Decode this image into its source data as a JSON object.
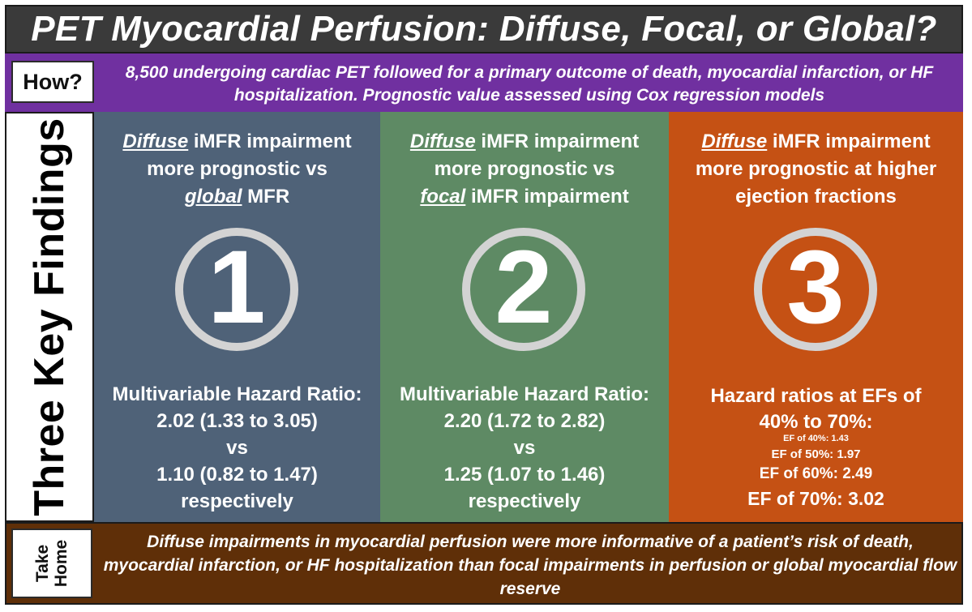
{
  "title": "PET Myocardial Perfusion: Diffuse, Focal, or Global?",
  "how": {
    "label": "How?",
    "text": "8,500 undergoing cardiac PET followed for a primary outcome of death, myocardial infarction, or HF hospitalization. Prognostic value assessed using Cox regression models"
  },
  "findings_label": "Three Key Findings",
  "colors": {
    "title_bar": "#3a3a3a",
    "how_bar": "#7030a0",
    "panel_1": "#4f6278",
    "panel_2": "#5e8a64",
    "panel_3": "#c55114",
    "takehome_bar": "#5f2f08",
    "circle_ring": "#d3d3d3"
  },
  "panels": [
    {
      "heading": {
        "emph1": "Diffuse",
        "line1_rest": " iMFR impairment",
        "line2": "more prognostic vs",
        "emph2": "global",
        "line3_rest": " MFR"
      },
      "number": "1",
      "stats": {
        "title": "Multivariable Hazard Ratio:",
        "value_a": "2.02 (1.33 to 3.05)",
        "vs": "vs",
        "value_b": "1.10 (0.82 to 1.47)",
        "suffix": "respectively"
      }
    },
    {
      "heading": {
        "emph1": "Diffuse",
        "line1_rest": " iMFR impairment",
        "line2": "more prognostic vs",
        "emph2": "focal",
        "line3_rest": " iMFR impairment"
      },
      "number": "2",
      "stats": {
        "title": "Multivariable Hazard Ratio:",
        "value_a": "2.20 (1.72 to 2.82)",
        "vs": "vs",
        "value_b": "1.25 (1.07 to 1.46)",
        "suffix": "respectively"
      }
    },
    {
      "heading": {
        "emph1": "Diffuse",
        "line1_rest": " iMFR impairment",
        "line2": "more prognostic at higher",
        "line3": "ejection fractions"
      },
      "number": "3",
      "hr_title_1": "Hazard ratios at EFs of",
      "hr_title_2": "40% to 70%:",
      "ef_values": [
        "EF of 40%: 1.43",
        "EF of 50%: 1.97",
        "EF of 60%: 2.49",
        "EF of 70%: 3.02"
      ]
    }
  ],
  "takehome": {
    "label_line1": "Take",
    "label_line2": "Home",
    "text": "Diffuse impairments in myocardial perfusion were more informative of a patient’s risk of death, myocardial infarction, or HF hospitalization than focal impairments in perfusion or global myocardial flow reserve"
  }
}
